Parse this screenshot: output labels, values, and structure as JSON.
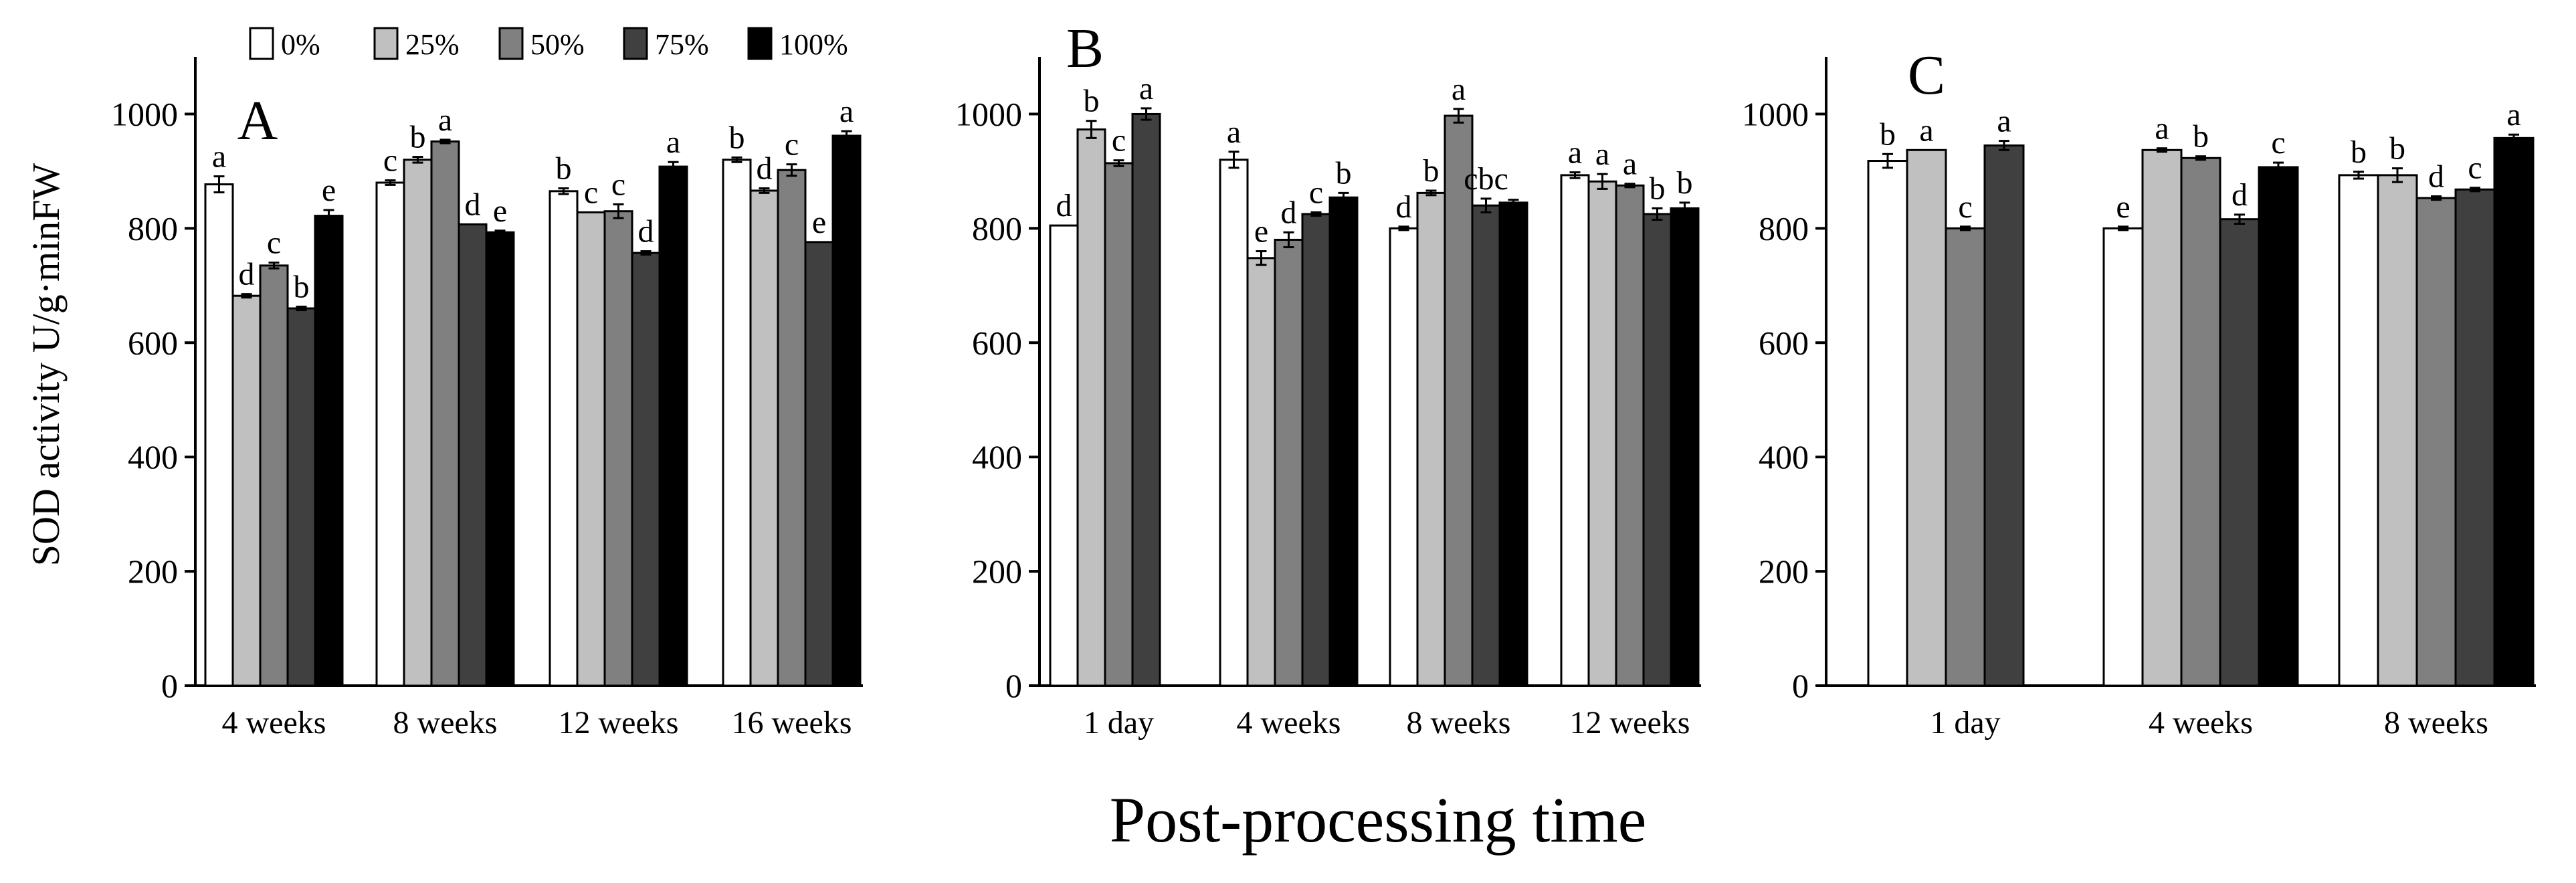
{
  "figure": {
    "ylabel": "SOD activity  U/g·minFW",
    "xlabel": "Post-processing time"
  },
  "legend": {
    "entries": [
      {
        "label": "0%",
        "color": "#ffffff"
      },
      {
        "label": "25%",
        "color": "#c0c0c0"
      },
      {
        "label": "50%",
        "color": "#808080"
      },
      {
        "label": "75%",
        "color": "#404040"
      },
      {
        "label": "100%",
        "color": "#000000"
      }
    ]
  },
  "chart_data": [
    {
      "type": "bar",
      "panel": "A",
      "title": "A",
      "ylim": [
        0,
        1100
      ],
      "yticks": [
        0,
        200,
        400,
        600,
        800,
        1000
      ],
      "categories": [
        "4 weeks",
        "8 weeks",
        "12 weeks",
        "16 weeks"
      ],
      "series": [
        {
          "name": "0%",
          "color": "#ffffff",
          "values": [
            877,
            880,
            865,
            920
          ],
          "errors": [
            14,
            4,
            5,
            4
          ],
          "letters": [
            "a",
            "c",
            "b",
            "b"
          ]
        },
        {
          "name": "25%",
          "color": "#c0c0c0",
          "values": [
            682,
            920,
            828,
            866
          ],
          "errors": [
            3,
            5,
            0,
            4
          ],
          "letters": [
            "d",
            "b",
            "c",
            "d"
          ]
        },
        {
          "name": "50%",
          "color": "#808080",
          "values": [
            735,
            952,
            830,
            902
          ],
          "errors": [
            5,
            3,
            12,
            10
          ],
          "letters": [
            "c",
            "a",
            "c",
            "c"
          ]
        },
        {
          "name": "75%",
          "color": "#404040",
          "values": [
            660,
            807,
            757,
            776
          ],
          "errors": [
            3,
            0,
            3,
            0
          ],
          "letters": [
            "b",
            "d",
            "d",
            "e"
          ]
        },
        {
          "name": "100%",
          "color": "#000000",
          "values": [
            822,
            793,
            908,
            962
          ],
          "errors": [
            10,
            3,
            8,
            8
          ],
          "letters": [
            "e",
            "e",
            "a",
            "a"
          ]
        }
      ]
    },
    {
      "type": "bar",
      "panel": "B",
      "title": "B",
      "ylim": [
        0,
        1100
      ],
      "yticks": [
        0,
        200,
        400,
        600,
        800,
        1000
      ],
      "categories": [
        "1 day",
        "4 weeks",
        "8 weeks",
        "12 weeks"
      ],
      "series": [
        {
          "name": "0%",
          "color": "#ffffff",
          "values": [
            805,
            920,
            800,
            893
          ],
          "errors": [
            0,
            14,
            3,
            5
          ],
          "letters": [
            "d",
            "a",
            "d",
            "a"
          ]
        },
        {
          "name": "25%",
          "color": "#c0c0c0",
          "values": [
            973,
            748,
            862,
            882
          ],
          "errors": [
            15,
            12,
            4,
            13
          ],
          "letters": [
            "b",
            "e",
            "b",
            "a"
          ]
        },
        {
          "name": "50%",
          "color": "#808080",
          "values": [
            914,
            780,
            997,
            875
          ],
          "errors": [
            5,
            13,
            12,
            3
          ],
          "letters": [
            "c",
            "d",
            "a",
            "a"
          ]
        },
        {
          "name": "75%",
          "color": "#404040",
          "values": [
            1000,
            825,
            840,
            825
          ],
          "errors": [
            10,
            3,
            12,
            10
          ],
          "letters": [
            "a",
            "c",
            "cbc",
            "b"
          ]
        },
        {
          "name": "100%",
          "color": "#000000",
          "values": [
            null,
            854,
            845,
            835
          ],
          "errors": [
            null,
            8,
            5,
            10
          ],
          "letters": [
            "",
            "b",
            "",
            "b"
          ]
        }
      ]
    },
    {
      "type": "bar",
      "panel": "C",
      "title": "C",
      "ylim": [
        0,
        1100
      ],
      "yticks": [
        0,
        200,
        400,
        600,
        800,
        1000
      ],
      "categories": [
        "1 day",
        "4 weeks",
        "8 weeks"
      ],
      "series": [
        {
          "name": "0%",
          "color": "#ffffff",
          "values": [
            918,
            800,
            893
          ],
          "errors": [
            12,
            3,
            6
          ],
          "letters": [
            "b",
            "e",
            "b"
          ]
        },
        {
          "name": "25%",
          "color": "#c0c0c0",
          "values": [
            937,
            937,
            893
          ],
          "errors": [
            0,
            3,
            12
          ],
          "letters": [
            "a",
            "a",
            "b"
          ]
        },
        {
          "name": "50%",
          "color": "#808080",
          "values": [
            800,
            923,
            853
          ],
          "errors": [
            3,
            3,
            3
          ],
          "letters": [
            "c",
            "b",
            "d"
          ]
        },
        {
          "name": "75%",
          "color": "#404040",
          "values": [
            945,
            816,
            868
          ],
          "errors": [
            8,
            8,
            3
          ],
          "letters": [
            "a",
            "d",
            "c"
          ]
        },
        {
          "name": "100%",
          "color": "#000000",
          "values": [
            null,
            907,
            958
          ],
          "errors": [
            null,
            8,
            6
          ],
          "letters": [
            "",
            "c",
            "a"
          ]
        }
      ]
    }
  ]
}
